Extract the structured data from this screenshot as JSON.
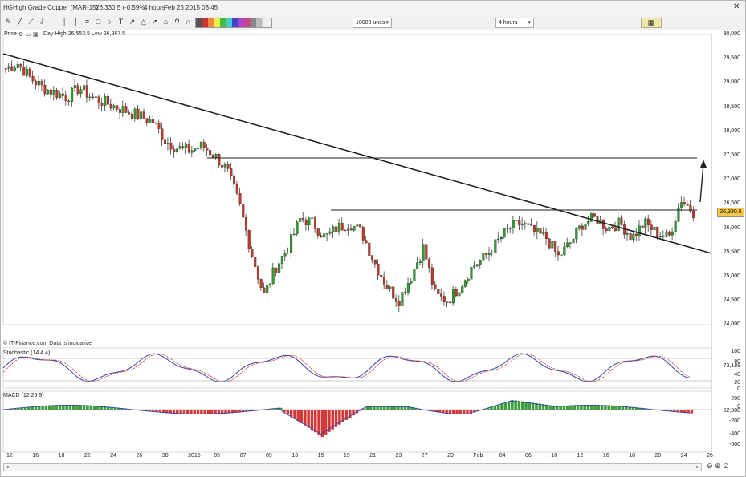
{
  "window": {
    "title_symbol": "HG",
    "title_instrument": "High Grade Copper (MAR-15)",
    "title_price": "26,330.5 (-0.59%)",
    "title_interval": "4 hours",
    "title_date": "Feb 25 2015 03:45"
  },
  "toolbar": {
    "units_select": "10000 units",
    "interval_select": "4 hours"
  },
  "subbar": {
    "price_label": "Price",
    "day_range": "Day High 26,552.5 Low 26,267.5"
  },
  "price_axis": [
    "30,000",
    "29,500",
    "29,000",
    "28,500",
    "28,000",
    "27,500",
    "27,000",
    "26,500",
    "26,000",
    "25,500",
    "25,000",
    "24,500",
    "24,000"
  ],
  "current_price_tag": "26,330.5",
  "source_note": "© IT-Finance.com Data is indicative",
  "stochastic": {
    "label": "Stochastic (14 4 4)",
    "axis": [
      "100",
      "80",
      "73,188",
      "40",
      "20",
      "0"
    ]
  },
  "macd": {
    "label": "MACD (12 26 9)",
    "axis": [
      "200",
      "0",
      "-62,388",
      "-200",
      "-400",
      "-600"
    ]
  },
  "dates": [
    "12",
    "16",
    "18",
    "22",
    "24",
    "26",
    "30",
    "2015",
    "05",
    "07",
    "09",
    "13",
    "15",
    "19",
    "21",
    "23",
    "27",
    "29",
    "Feb",
    "04",
    "06",
    "10",
    "12",
    "16",
    "18",
    "20",
    "24",
    "26"
  ],
  "colors": {
    "up_candle": "#2e9e2e",
    "down_candle": "#c0392b",
    "trendline": "#222222",
    "price_tag": "#f6c94a"
  },
  "chart_data": {
    "type": "candlestick",
    "title": "HG - High Grade Copper (MAR-15)",
    "interval": "4 hours",
    "ylim": [
      24000,
      30000
    ],
    "x_ticks": [
      "12",
      "16",
      "18",
      "22",
      "24",
      "26",
      "30",
      "2015",
      "05",
      "07",
      "09",
      "13",
      "15",
      "19",
      "21",
      "23",
      "27",
      "29",
      "Feb",
      "04",
      "06",
      "10",
      "12",
      "16",
      "18",
      "20",
      "24",
      "26"
    ],
    "close_path_approx": [
      29300,
      29400,
      29100,
      28900,
      28800,
      28700,
      28900,
      28700,
      28600,
      28500,
      28400,
      28300,
      28200,
      27800,
      27650,
      27600,
      27700,
      27500,
      27200,
      26500,
      25500,
      24600,
      25200,
      25600,
      26200,
      26100,
      25800,
      26000,
      26100,
      25900,
      25300,
      24800,
      24500,
      25000,
      25600,
      24600,
      24500,
      24800,
      25200,
      25400,
      25700,
      26000,
      26100,
      25900,
      25800,
      25400,
      25700,
      26100,
      26200,
      26000,
      26100,
      25800,
      26100,
      25900,
      25800,
      26600,
      26330
    ],
    "annotations": [
      "descending trendline",
      "horizontal resistance ~27,450",
      "horizontal support ~26,400",
      "upward arrow projection"
    ]
  }
}
